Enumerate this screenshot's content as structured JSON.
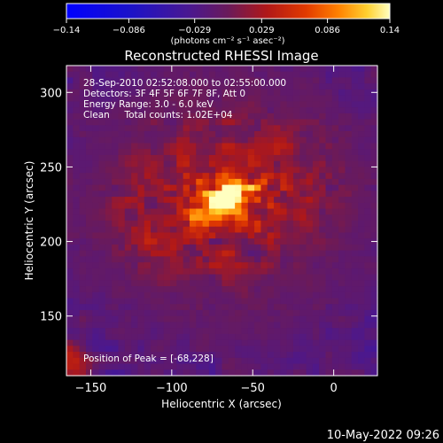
{
  "chart_data": {
    "type": "heatmap",
    "title": "Reconstructed RHESSI Image",
    "xlabel": "Heliocentric X (arcsec)",
    "ylabel": "Heliocentric Y (arcsec)",
    "xlim": [
      -165,
      27
    ],
    "ylim": [
      110,
      318
    ],
    "x_ticks": [
      -150,
      -100,
      -50,
      0
    ],
    "y_ticks": [
      150,
      200,
      250,
      300
    ],
    "colorbar": {
      "min": -0.14,
      "max": 0.14,
      "tick_values": [
        -0.14,
        -0.086,
        -0.029,
        0.029,
        0.086,
        0.14
      ],
      "tick_labels": [
        "−0.14",
        "−0.086",
        "−0.029",
        "0.029",
        "0.086",
        "0.14"
      ],
      "unit_label": "(photons cm⁻² s⁻¹ asec⁻²)"
    },
    "annotations": [
      "28-Sep-2010 02:52:08.000 to 02:55:00.000",
      "Detectors: 3F 4F 5F 6F 7F 8F, Att 0",
      "Energy Range: 3.0 - 6.0 keV",
      "Clean     Total counts: 1.02E+04"
    ],
    "peak_label": "Position of Peak = [-68,228]",
    "peak": {
      "x": -68,
      "y": 228,
      "value": 0.14
    },
    "grid": false,
    "grid_cells": {
      "nx": 48,
      "ny": 52
    }
  },
  "footer": {
    "timestamp": "10-May-2022 09:26"
  }
}
